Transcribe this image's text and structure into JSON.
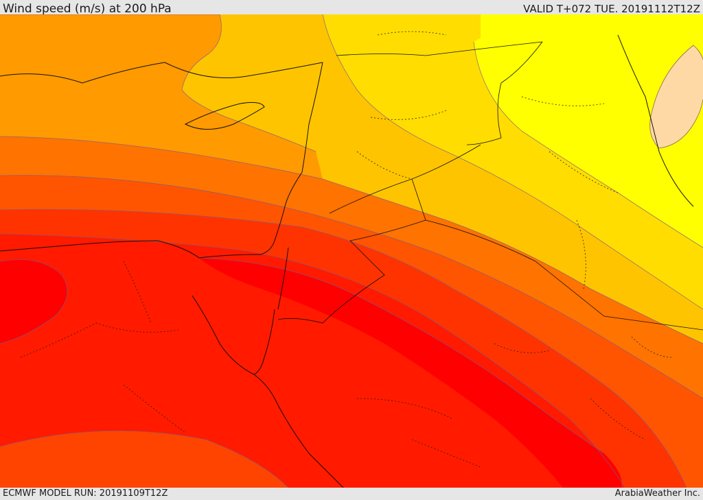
{
  "header": {
    "title": "Wind speed (m/s) at 200 hPa",
    "valid": "VALID T+072 TUE. 20191112T12Z"
  },
  "footer": {
    "model_run": "ECMWF MODEL RUN: 20191109T12Z",
    "credit": "ArabiaWeather Inc."
  },
  "map": {
    "variable": "wind speed",
    "level": "200 hPa",
    "units": "m/s",
    "colors": {
      "yellow": "#ffff00",
      "light_yellow_orange": "#ffdd00",
      "light_orange": "#ffc400",
      "orange": "#ff9a00",
      "dark_orange": "#ff7300",
      "red_orange": "#ff5500",
      "orange_red": "#ff3300",
      "red": "#ff1a00",
      "deep_red": "#ff0000",
      "peach": "#ffd9a5"
    }
  }
}
